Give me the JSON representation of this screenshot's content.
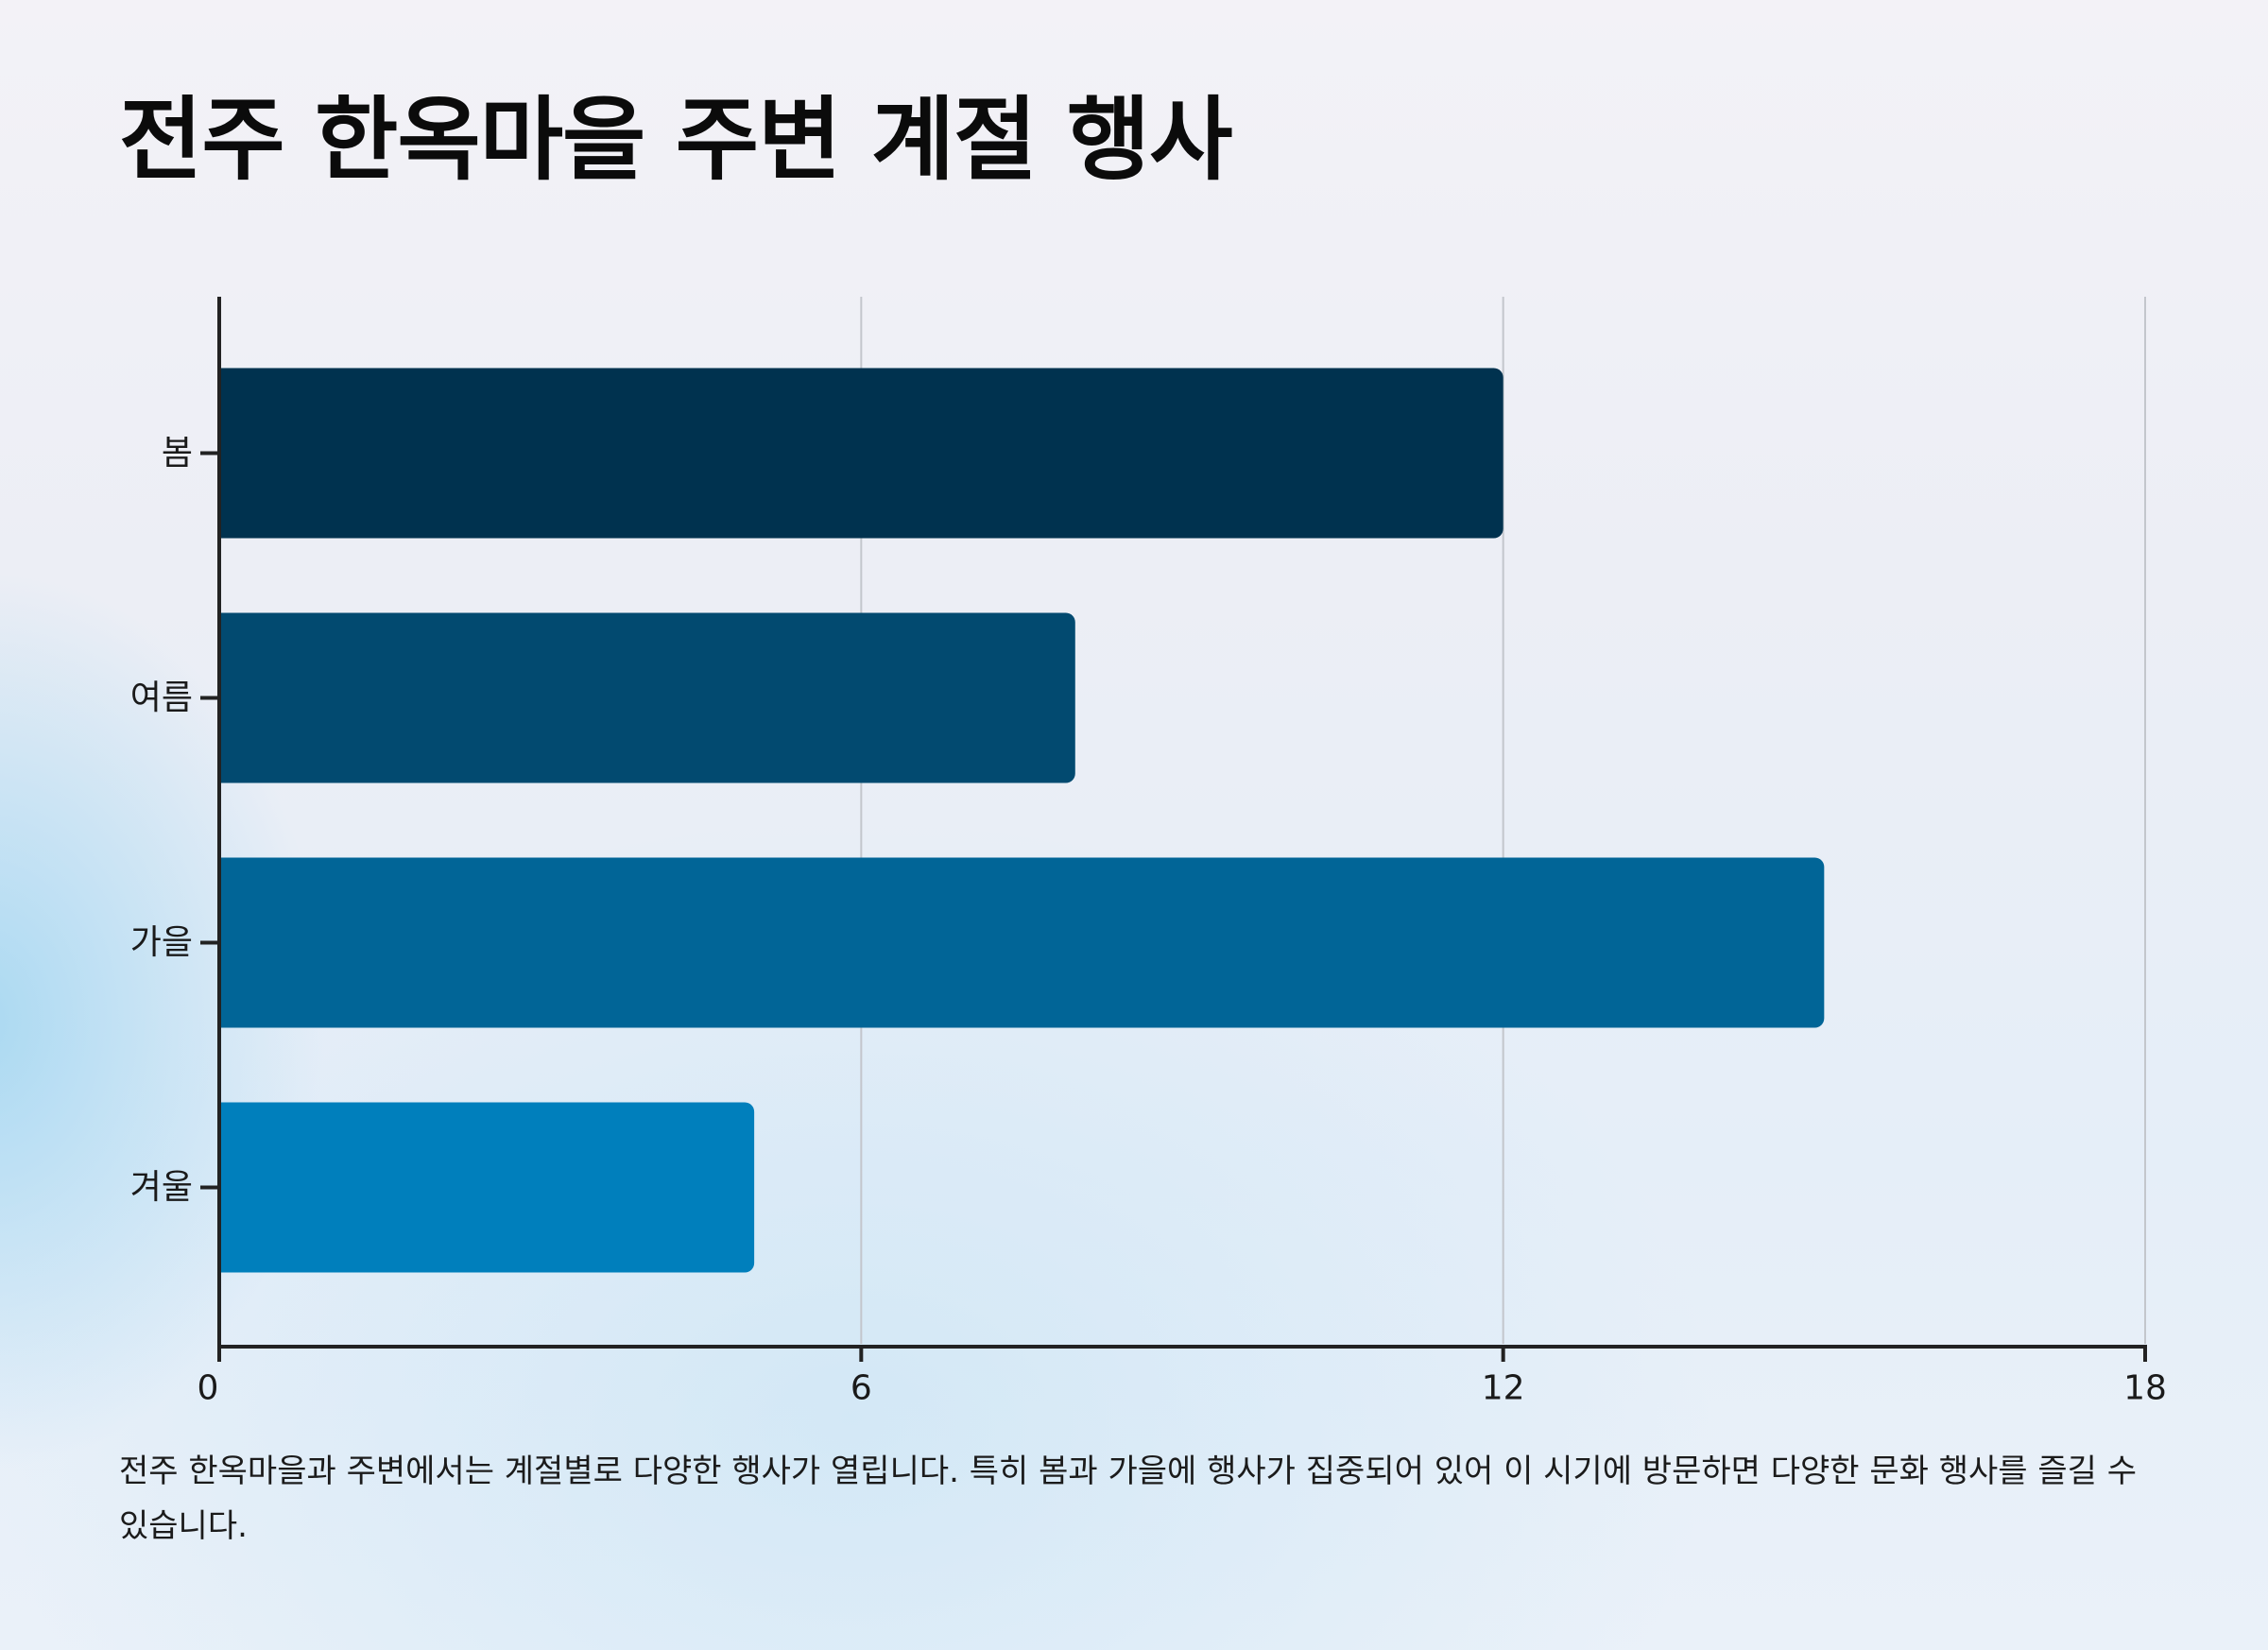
{
  "title": "전주 한옥마을 주변 계절 행사",
  "caption": "전주 한옥마을과 주변에서는 계절별로 다양한 행사가 열립니다. 특히 봄과 가을에 행사가 집중되어 있어 이 시기에 방문하면 다양한 문화 행사를 즐길 수 있습니다.",
  "chart_data": {
    "type": "bar",
    "orientation": "horizontal",
    "categories": [
      "봄",
      "여름",
      "가을",
      "겨울"
    ],
    "values": [
      12,
      8,
      15,
      5
    ],
    "colors": [
      "#00324f",
      "#024a70",
      "#016597",
      "#007fbc"
    ],
    "xlim": [
      0,
      18
    ],
    "xticks": [
      0,
      6,
      12,
      18
    ],
    "grid": true,
    "title": "전주 한옥마을 주변 계절 행사",
    "xlabel": "",
    "ylabel": ""
  }
}
